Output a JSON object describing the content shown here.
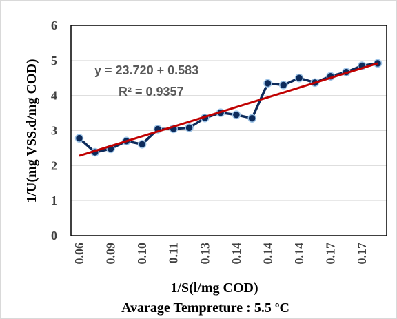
{
  "chart_data": {
    "type": "line",
    "xlabel": "1/S(l/mg COD)",
    "ylabel": "1/U(mg VSS.d/mg COD)",
    "subtitle": "Avarage Tempreture : 5.5 ºC",
    "ylim": [
      0,
      6
    ],
    "yticks": [
      0,
      1,
      2,
      3,
      4,
      5,
      6
    ],
    "x_tick_labels": [
      "0.06",
      "0.09",
      "0.10",
      "0.11",
      "0.13",
      "0.14",
      "0.14",
      "0.14",
      "0.17",
      "0.17"
    ],
    "grid": true,
    "series": [
      {
        "color": "#0d2b5b",
        "marker": "circle",
        "values": [
          2.78,
          2.38,
          2.48,
          2.7,
          2.61,
          3.04,
          3.05,
          3.08,
          3.36,
          3.51,
          3.45,
          3.35,
          4.35,
          4.3,
          4.5,
          4.37,
          4.55,
          4.67,
          4.85,
          4.92
        ]
      }
    ],
    "trendline": {
      "type": "linear",
      "color": "#c00000",
      "start_y": 2.28,
      "end_y": 4.92
    },
    "annotations": {
      "equation": "y = 23.720 + 0.583",
      "r_squared": "R² = 0.9357"
    }
  }
}
